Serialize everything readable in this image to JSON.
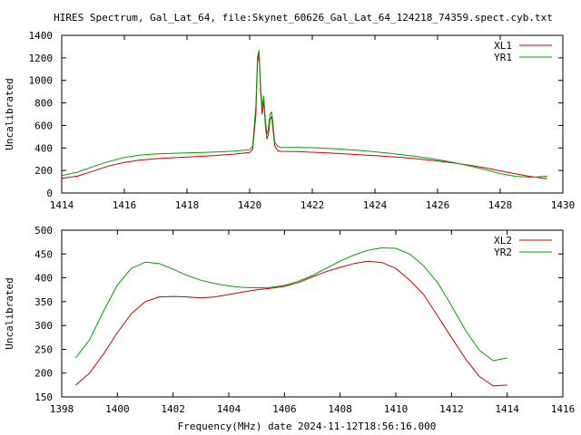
{
  "figure_title": "HIRES Spectrum, Gal_Lat_64, file:Skynet_60626_Gal_Lat_64_124218_74359.spect.cyb.txt",
  "x_footer": "Frequency(MHz) date 2024-11-12T18:56:16.000",
  "colors": {
    "red": "#cc0000",
    "green": "#00a000",
    "frame": "#000000",
    "background": "#ffffff"
  },
  "chart_data": [
    {
      "type": "line",
      "title": "HIRES Spectrum, Gal_Lat_64, file:Skynet_60626_Gal_Lat_64_124218_74359.spect.cyb.txt",
      "xlabel": "",
      "ylabel": "Uncalibrated",
      "xlim": [
        1414,
        1430
      ],
      "ylim": [
        0,
        1400
      ],
      "xticks": [
        "1414",
        "1416",
        "1418",
        "1420",
        "1422",
        "1424",
        "1426",
        "1428",
        "1430"
      ],
      "yticks": [
        "0",
        "200",
        "400",
        "600",
        "800",
        "1000",
        "1200",
        "1400"
      ],
      "legend": "top-right",
      "grid": false,
      "series": [
        {
          "name": "XL1",
          "color": "#cc0000",
          "x": [
            1414.0,
            1414.5,
            1415.0,
            1415.5,
            1416.0,
            1416.5,
            1417.0,
            1417.5,
            1418.0,
            1418.5,
            1419.0,
            1419.5,
            1420.0,
            1420.1,
            1420.2,
            1420.25,
            1420.3,
            1420.35,
            1420.4,
            1420.45,
            1420.5,
            1420.55,
            1420.6,
            1420.65,
            1420.7,
            1420.75,
            1420.8,
            1420.9,
            1421.0,
            1421.5,
            1422.0,
            1422.5,
            1423.0,
            1423.5,
            1424.0,
            1424.5,
            1425.0,
            1425.5,
            1426.0,
            1426.5,
            1427.0,
            1427.5,
            1428.0,
            1428.5,
            1429.0,
            1429.5
          ],
          "y": [
            130,
            150,
            195,
            240,
            272,
            293,
            305,
            313,
            320,
            327,
            335,
            345,
            360,
            390,
            700,
            1150,
            1240,
            900,
            700,
            820,
            600,
            480,
            520,
            650,
            680,
            550,
            420,
            375,
            370,
            368,
            362,
            356,
            348,
            340,
            332,
            323,
            313,
            300,
            285,
            268,
            248,
            225,
            197,
            170,
            145,
            128
          ]
        },
        {
          "name": "YR1",
          "color": "#00a000",
          "x": [
            1414.0,
            1414.5,
            1415.0,
            1415.5,
            1416.0,
            1416.5,
            1417.0,
            1417.5,
            1418.0,
            1418.5,
            1419.0,
            1419.5,
            1420.0,
            1420.1,
            1420.2,
            1420.25,
            1420.3,
            1420.35,
            1420.4,
            1420.45,
            1420.5,
            1420.55,
            1420.6,
            1420.65,
            1420.7,
            1420.75,
            1420.8,
            1420.9,
            1421.0,
            1421.5,
            1422.0,
            1422.5,
            1423.0,
            1423.5,
            1424.0,
            1424.5,
            1425.0,
            1425.5,
            1426.0,
            1426.5,
            1427.0,
            1427.5,
            1428.0,
            1428.5,
            1429.0,
            1429.5
          ],
          "y": [
            155,
            185,
            235,
            280,
            315,
            337,
            347,
            352,
            356,
            360,
            365,
            372,
            385,
            420,
            780,
            1200,
            1270,
            950,
            760,
            860,
            650,
            520,
            580,
            700,
            720,
            600,
            450,
            415,
            405,
            405,
            403,
            397,
            388,
            378,
            366,
            352,
            336,
            318,
            297,
            272,
            242,
            210,
            172,
            148,
            140,
            150
          ]
        }
      ]
    },
    {
      "type": "line",
      "title": "",
      "xlabel": "Frequency(MHz) date 2024-11-12T18:56:16.000",
      "ylabel": "Uncalibrated",
      "xlim": [
        1398,
        1416
      ],
      "ylim": [
        150,
        500
      ],
      "xticks": [
        "1398",
        "1400",
        "1402",
        "1404",
        "1406",
        "1408",
        "1410",
        "1412",
        "1414",
        "1416"
      ],
      "yticks": [
        "150",
        "200",
        "250",
        "300",
        "350",
        "400",
        "450",
        "500"
      ],
      "legend": "top-right",
      "grid": false,
      "series": [
        {
          "name": "XL2",
          "color": "#cc0000",
          "x": [
            1398.5,
            1399.0,
            1399.5,
            1400.0,
            1400.5,
            1401.0,
            1401.5,
            1402.0,
            1402.5,
            1403.0,
            1403.5,
            1404.0,
            1404.5,
            1405.0,
            1405.5,
            1406.0,
            1406.5,
            1407.0,
            1407.5,
            1408.0,
            1408.5,
            1409.0,
            1409.5,
            1410.0,
            1410.5,
            1411.0,
            1411.5,
            1412.0,
            1412.5,
            1413.0,
            1413.5,
            1414.0
          ],
          "y": [
            175,
            200,
            240,
            285,
            325,
            350,
            360,
            361,
            360,
            358,
            360,
            365,
            370,
            375,
            378,
            382,
            390,
            402,
            413,
            422,
            430,
            435,
            432,
            420,
            395,
            365,
            320,
            275,
            230,
            193,
            173,
            175
          ]
        },
        {
          "name": "YR2",
          "color": "#00a000",
          "x": [
            1398.5,
            1399.0,
            1399.5,
            1400.0,
            1400.5,
            1401.0,
            1401.5,
            1402.0,
            1402.5,
            1403.0,
            1403.5,
            1404.0,
            1404.5,
            1405.0,
            1405.5,
            1406.0,
            1406.5,
            1407.0,
            1407.5,
            1408.0,
            1408.5,
            1409.0,
            1409.5,
            1410.0,
            1410.5,
            1411.0,
            1411.5,
            1412.0,
            1412.5,
            1413.0,
            1413.5,
            1414.0
          ],
          "y": [
            232,
            270,
            330,
            385,
            420,
            433,
            430,
            418,
            405,
            395,
            388,
            383,
            380,
            379,
            380,
            384,
            393,
            405,
            420,
            435,
            448,
            458,
            463,
            462,
            450,
            425,
            390,
            342,
            290,
            248,
            226,
            232
          ]
        }
      ]
    }
  ]
}
